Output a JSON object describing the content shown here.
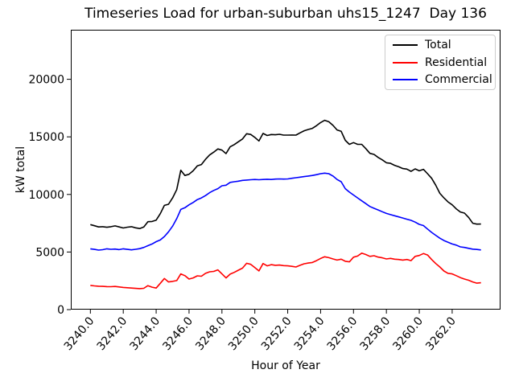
{
  "chart_data": {
    "type": "line",
    "title": "Timeseries Load for urban-suburban uhs15_1247  Day 136",
    "xlabel": "Hour of Year",
    "ylabel": "kW total",
    "xlim": [
      3238.81,
      3264.94
    ],
    "ylim": [
      0,
      24300
    ],
    "x_ticks": [
      3240,
      3242,
      3244,
      3246,
      3248,
      3250,
      3252,
      3254,
      3256,
      3258,
      3260,
      3262
    ],
    "x_tick_labels": [
      "3240.0",
      "3242.0",
      "3244.0",
      "3246.0",
      "3248.0",
      "3250.0",
      "3252.0",
      "3254.0",
      "3256.0",
      "3258.0",
      "3260.0",
      "3262.0"
    ],
    "y_ticks": [
      0,
      5000,
      10000,
      15000,
      20000
    ],
    "y_tick_labels": [
      "0",
      "5000",
      "10000",
      "15000",
      "20000"
    ],
    "x_tick_rotation_deg": 50,
    "grid": false,
    "legend_position": "upper right",
    "x_start": 3240.0,
    "x_step": 0.25,
    "n_points": 96,
    "series": [
      {
        "name": "Total",
        "color": "#000000",
        "values": [
          7380,
          7280,
          7180,
          7200,
          7150,
          7200,
          7270,
          7180,
          7090,
          7160,
          7200,
          7100,
          7040,
          7180,
          7630,
          7650,
          7770,
          8330,
          9050,
          9150,
          9700,
          10420,
          12100,
          11650,
          11750,
          12050,
          12480,
          12600,
          13050,
          13430,
          13670,
          13950,
          13850,
          13550,
          14130,
          14330,
          14570,
          14820,
          15270,
          15210,
          14950,
          14640,
          15300,
          15120,
          15200,
          15180,
          15220,
          15150,
          15150,
          15160,
          15150,
          15350,
          15530,
          15640,
          15740,
          15970,
          16240,
          16440,
          16310,
          16000,
          15600,
          15480,
          14700,
          14350,
          14500,
          14350,
          14350,
          13980,
          13570,
          13480,
          13210,
          13000,
          12750,
          12700,
          12530,
          12400,
          12250,
          12200,
          12000,
          12220,
          12050,
          12180,
          11800,
          11400,
          10800,
          10100,
          9700,
          9350,
          9100,
          8750,
          8480,
          8380,
          8000,
          7500,
          7420,
          7430
        ]
      },
      {
        "name": "Residential",
        "color": "#ff0000",
        "values": [
          2100,
          2060,
          2030,
          2020,
          2000,
          1990,
          2010,
          1970,
          1930,
          1900,
          1870,
          1840,
          1820,
          1850,
          2080,
          1950,
          1870,
          2280,
          2700,
          2400,
          2450,
          2520,
          3100,
          2950,
          2650,
          2750,
          2930,
          2900,
          3150,
          3280,
          3320,
          3450,
          3100,
          2750,
          3080,
          3230,
          3420,
          3600,
          4020,
          3930,
          3650,
          3360,
          4000,
          3800,
          3900,
          3850,
          3870,
          3820,
          3800,
          3760,
          3700,
          3850,
          3980,
          4040,
          4090,
          4250,
          4440,
          4590,
          4510,
          4400,
          4300,
          4380,
          4200,
          4150,
          4550,
          4650,
          4900,
          4780,
          4620,
          4680,
          4560,
          4500,
          4400,
          4450,
          4380,
          4350,
          4300,
          4350,
          4250,
          4620,
          4700,
          4870,
          4740,
          4350,
          4000,
          3700,
          3350,
          3150,
          3100,
          2950,
          2780,
          2650,
          2550,
          2400,
          2300,
          2330
        ]
      },
      {
        "name": "Commercial",
        "color": "#0000ff",
        "values": [
          5280,
          5230,
          5170,
          5200,
          5280,
          5240,
          5260,
          5210,
          5280,
          5230,
          5190,
          5240,
          5290,
          5400,
          5550,
          5700,
          5900,
          6050,
          6350,
          6750,
          7250,
          7900,
          8700,
          8850,
          9100,
          9300,
          9550,
          9700,
          9900,
          10150,
          10350,
          10500,
          10750,
          10800,
          11050,
          11100,
          11150,
          11220,
          11250,
          11280,
          11300,
          11280,
          11300,
          11320,
          11300,
          11330,
          11350,
          11330,
          11350,
          11400,
          11450,
          11500,
          11550,
          11600,
          11650,
          11720,
          11800,
          11850,
          11800,
          11600,
          11300,
          11100,
          10500,
          10200,
          9950,
          9700,
          9450,
          9200,
          8950,
          8800,
          8650,
          8500,
          8350,
          8250,
          8150,
          8050,
          7950,
          7850,
          7750,
          7600,
          7400,
          7300,
          7000,
          6700,
          6450,
          6200,
          6000,
          5850,
          5700,
          5600,
          5450,
          5400,
          5320,
          5250,
          5220,
          5180
        ]
      }
    ]
  }
}
